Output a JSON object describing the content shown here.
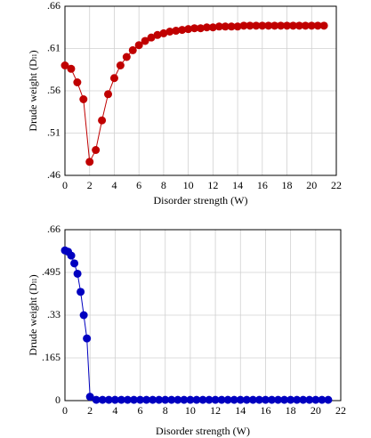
{
  "chart_data": [
    {
      "type": "line",
      "xlabel": "Disorder strength (W)",
      "ylabel": "Drude weight (Dₗₗ)",
      "x": [
        0,
        0.5,
        1,
        1.5,
        2,
        2.5,
        3,
        3.5,
        4,
        4.5,
        5,
        5.5,
        6,
        6.5,
        7,
        7.5,
        8,
        8.5,
        9,
        9.5,
        10,
        10.5,
        11,
        11.5,
        12,
        12.5,
        13,
        13.5,
        14,
        14.5,
        15,
        15.5,
        16,
        16.5,
        17,
        17.5,
        18,
        18.5,
        19,
        19.5,
        20,
        20.5,
        21
      ],
      "series": [
        {
          "color": "#c00000",
          "values": [
            0.59,
            0.586,
            0.57,
            0.55,
            0.476,
            0.49,
            0.525,
            0.556,
            0.575,
            0.59,
            0.6,
            0.608,
            0.614,
            0.619,
            0.623,
            0.626,
            0.628,
            0.63,
            0.631,
            0.632,
            0.633,
            0.634,
            0.634,
            0.635,
            0.635,
            0.636,
            0.636,
            0.636,
            0.636,
            0.637,
            0.637,
            0.637,
            0.637,
            0.637,
            0.637,
            0.637,
            0.637,
            0.637,
            0.637,
            0.637,
            0.637,
            0.637,
            0.637
          ]
        }
      ],
      "xlim": [
        0,
        22
      ],
      "xticks": [
        0,
        2,
        4,
        6,
        8,
        10,
        12,
        14,
        16,
        18,
        20,
        22
      ],
      "ylim": [
        0.46,
        0.66
      ],
      "yticks": [
        {
          "value": 0.46,
          "label": ".46"
        },
        {
          "value": 0.51,
          "label": ".51"
        },
        {
          "value": 0.56,
          "label": ".56"
        },
        {
          "value": 0.61,
          "label": ".61"
        },
        {
          "value": 0.66,
          "label": ".66"
        }
      ],
      "grid": true
    },
    {
      "type": "line",
      "xlabel": "Disorder strength (W)",
      "ylabel": "Drude weight (Dₗₗ)",
      "x": [
        0,
        0.25,
        0.5,
        0.75,
        1,
        1.25,
        1.5,
        1.75,
        2,
        2.5,
        3,
        3.5,
        4,
        4.5,
        5,
        5.5,
        6,
        6.5,
        7,
        7.5,
        8,
        8.5,
        9,
        9.5,
        10,
        10.5,
        11,
        11.5,
        12,
        12.5,
        13,
        13.5,
        14,
        14.5,
        15,
        15.5,
        16,
        16.5,
        17,
        17.5,
        18,
        18.5,
        19,
        19.5,
        20,
        20.5,
        21
      ],
      "series": [
        {
          "color": "#0000c0",
          "values": [
            0.58,
            0.575,
            0.56,
            0.53,
            0.49,
            0.42,
            0.33,
            0.24,
            0.015,
            0.003,
            0.003,
            0.003,
            0.003,
            0.003,
            0.003,
            0.003,
            0.003,
            0.003,
            0.003,
            0.003,
            0.003,
            0.003,
            0.003,
            0.003,
            0.003,
            0.003,
            0.003,
            0.003,
            0.003,
            0.003,
            0.003,
            0.003,
            0.003,
            0.003,
            0.003,
            0.003,
            0.003,
            0.003,
            0.003,
            0.003,
            0.003,
            0.003,
            0.003,
            0.003,
            0.003,
            0.003,
            0.003
          ]
        }
      ],
      "xlim": [
        0,
        22
      ],
      "xticks": [
        0,
        2,
        4,
        6,
        8,
        10,
        12,
        14,
        16,
        18,
        20,
        22
      ],
      "ylim": [
        0,
        0.66
      ],
      "yticks": [
        0,
        {
          "value": 0.165,
          "label": ".165"
        },
        {
          "value": 0.33,
          "label": ".33"
        },
        {
          "value": 0.495,
          "label": ".495"
        },
        {
          "value": 0.66,
          "label": ".66"
        }
      ],
      "grid": true
    }
  ]
}
